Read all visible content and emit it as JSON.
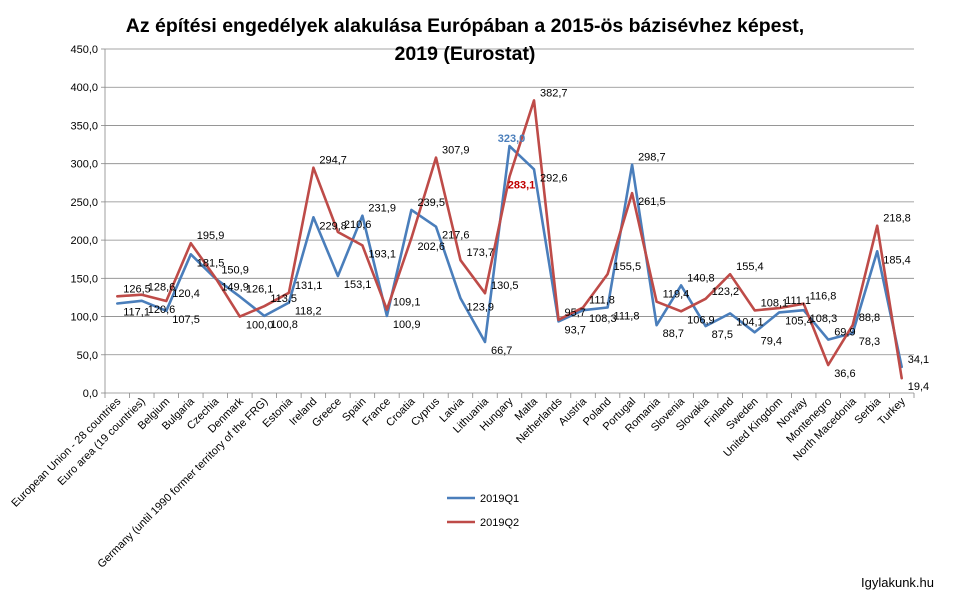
{
  "chart_data": {
    "type": "line",
    "title_line1": "Az építési engedélyek alakulása Európában a 2015-ös bázisévhez képest,",
    "title_line2": "2019 (Eurostat)",
    "xlabel": "",
    "ylabel": "",
    "ylim": [
      0,
      450
    ],
    "ytick_step": 50,
    "ytick_labels": [
      "0,0",
      "50,0",
      "100,0",
      "150,0",
      "200,0",
      "250,0",
      "300,0",
      "350,0",
      "400,0",
      "450,0"
    ],
    "grid": true,
    "legend_position": "bottom-center",
    "categories": [
      "European Union - 28 countries",
      "Euro area (19 countries)",
      "Belgium",
      "Bulgaria",
      "Czechia",
      "Denmark",
      "Germany (until 1990 former territory of the FRG)",
      "Estonia",
      "Ireland",
      "Greece",
      "Spain",
      "France",
      "Croatia",
      "Cyprus",
      "Latvia",
      "Lithuania",
      "Hungary",
      "Malta",
      "Netherlands",
      "Austria",
      "Poland",
      "Portugal",
      "Romania",
      "Slovenia",
      "Slovakia",
      "Finland",
      "Sweden",
      "United Kingdom",
      "Norway",
      "Montenegro",
      "North Macedonia",
      "Serbia",
      "Turkey"
    ],
    "series": [
      {
        "name": "2019Q1",
        "color": "#4a7ebb",
        "values": [
          117.1,
          120.6,
          107.5,
          181.5,
          149.9,
          126.1,
          100.8,
          118.2,
          229.8,
          153.1,
          231.9,
          100.9,
          239.5,
          217.6,
          123.9,
          66.7,
          323.0,
          292.6,
          93.7,
          108.3,
          111.8,
          298.7,
          88.7,
          140.8,
          87.5,
          104.1,
          79.4,
          105.4,
          108.3,
          69.9,
          78.3,
          185.4,
          34.1
        ],
        "labels": [
          "117,1",
          "120,6",
          "107,5",
          "181,5",
          "149,9",
          "126,1",
          "100,8",
          "118,2",
          "229,8",
          "153,1",
          "231,9",
          "100,9",
          "239,5",
          "217,6",
          "123,9",
          "66,7",
          "323,0",
          "292,6",
          "93,7",
          "108,3",
          "111,8",
          "298,7",
          "88,7",
          "140,8",
          "87,5",
          "104,1",
          "79,4",
          "105,4",
          "108,3",
          "69,9",
          "78,3",
          "185,4",
          "34,1"
        ]
      },
      {
        "name": "2019Q2",
        "color": "#be4b48",
        "values": [
          126.5,
          128.6,
          120.4,
          195.9,
          150.9,
          100.0,
          113.5,
          131.1,
          294.7,
          210.6,
          193.1,
          109.1,
          202.6,
          307.9,
          173.7,
          130.5,
          283.1,
          382.7,
          95.7,
          111.8,
          155.5,
          261.5,
          119.4,
          106.9,
          123.2,
          155.4,
          108.1,
          111.1,
          116.8,
          36.6,
          88.8,
          218.8,
          19.4
        ],
        "labels": [
          "126,5",
          "128,6",
          "120,4",
          "195,9",
          "150,9",
          "100,0",
          "113,5",
          "131,1",
          "294,7",
          "210,6",
          "193,1",
          "109,1",
          "202,6",
          "307,9",
          "173,7",
          "130,5",
          "283,1",
          "382,7",
          "95,7",
          "111,8",
          "155,5",
          "261,5",
          "119,4",
          "106,9",
          "123,2",
          "155,4",
          "108,1",
          "111,1",
          "116,8",
          "36,6",
          "88,8",
          "218,8",
          "19,4"
        ]
      }
    ],
    "highlighted_labels": [
      {
        "series": 0,
        "index": 16,
        "color": "#4a7ebb"
      },
      {
        "series": 1,
        "index": 16,
        "color": "#c00000"
      }
    ]
  },
  "watermark": "Igylakunk.hu"
}
